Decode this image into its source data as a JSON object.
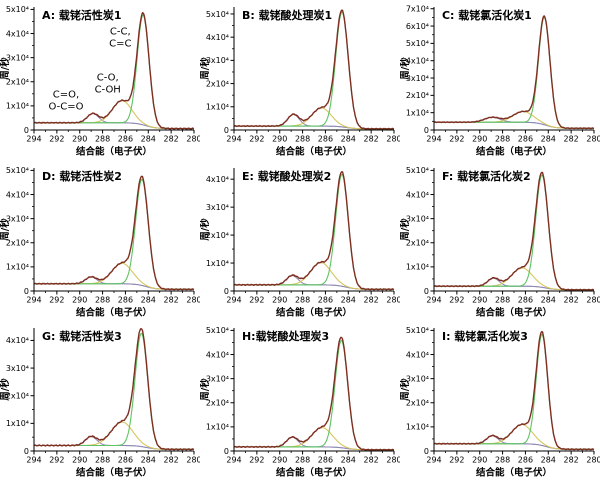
{
  "figure": {
    "x_label": "结合能（电子伏）",
    "y_label": "周/秒",
    "x_ticks": [
      294,
      292,
      290,
      288,
      286,
      284,
      282,
      280
    ],
    "x_range": [
      294,
      280
    ],
    "y_tick_suffix": "x10⁴",
    "y_unit_counts": "counts per second × 10^4",
    "colors": {
      "envelope": "#7e2f22",
      "main_peak": "#5ec463",
      "secondary_peak": "#d6c65e",
      "minor_peak": "#8d86b0",
      "baseline": "#8a97c9",
      "axis": "#000000",
      "background": "#ffffff"
    }
  },
  "chart_data": [
    {
      "type": "line",
      "panel": "A",
      "title": "A: 载铑活性炭1",
      "xlabel": "结合能（电子伏）",
      "ylabel": "周/秒",
      "x_range": [
        294,
        280
      ],
      "x_ticks": [
        294,
        292,
        290,
        288,
        286,
        284,
        282,
        280
      ],
      "y_tick_max": 5,
      "ylim": [
        0,
        5.1
      ],
      "baseline": {
        "left": 0.3,
        "right": 0.06
      },
      "peaks": {
        "main": {
          "center": 284.45,
          "sigma": 0.52,
          "height": 4.55,
          "assignment": "C-C, C=C"
        },
        "secondary": {
          "center": 286.3,
          "sigma": 0.85,
          "height": 0.92,
          "assignment": "C-O, C-OH"
        },
        "minor": {
          "center": 288.85,
          "sigma": 0.5,
          "height": 0.38,
          "assignment": "C=O, O-C=O"
        }
      },
      "annotations": [
        {
          "lines": [
            "C-C,",
            "C=C"
          ],
          "x": 286.45,
          "y": 3.95
        },
        {
          "lines": [
            "C-O,",
            "C-OH"
          ],
          "x": 287.55,
          "y": 2.05
        },
        {
          "lines": [
            "C=O,",
            "O-C=O"
          ],
          "x": 291.2,
          "y": 1.35
        }
      ]
    },
    {
      "type": "line",
      "panel": "B",
      "title": "B: 载铑酸处理炭1",
      "xlabel": "结合能（电子伏）",
      "ylabel": "周/秒",
      "x_range": [
        294,
        280
      ],
      "x_ticks": [
        294,
        292,
        290,
        288,
        286,
        284,
        282,
        280
      ],
      "y_tick_max": 5,
      "ylim": [
        0,
        5.3
      ],
      "baseline": {
        "left": 0.17,
        "right": 0.05
      },
      "peaks": {
        "main": {
          "center": 284.55,
          "sigma": 0.55,
          "height": 4.95
        },
        "secondary": {
          "center": 286.35,
          "sigma": 0.85,
          "height": 0.78
        },
        "minor": {
          "center": 288.8,
          "sigma": 0.5,
          "height": 0.5
        }
      },
      "annotations": []
    },
    {
      "type": "line",
      "panel": "C",
      "title": "C: 载铑氯活化炭1",
      "xlabel": "结合能（电子伏）",
      "ylabel": "周/秒",
      "x_range": [
        294,
        280
      ],
      "x_ticks": [
        294,
        292,
        290,
        288,
        286,
        284,
        282,
        280
      ],
      "y_tick_max": 7,
      "ylim": [
        0,
        7.1
      ],
      "baseline": {
        "left": 0.45,
        "right": 0.1
      },
      "peaks": {
        "main": {
          "center": 284.35,
          "sigma": 0.5,
          "height": 6.2
        },
        "secondary": {
          "center": 286.2,
          "sigma": 0.9,
          "height": 0.62
        },
        "minor": {
          "center": 288.9,
          "sigma": 0.7,
          "height": 0.28
        }
      },
      "annotations": []
    },
    {
      "type": "line",
      "panel": "D",
      "title": "D: 载铑活性炭2",
      "xlabel": "结合能（电子伏）",
      "ylabel": "周/秒",
      "x_range": [
        294,
        280
      ],
      "x_ticks": [
        294,
        292,
        290,
        288,
        286,
        284,
        282,
        280
      ],
      "y_tick_max": 5,
      "ylim": [
        0,
        5.1
      ],
      "baseline": {
        "left": 0.3,
        "right": 0.07
      },
      "peaks": {
        "main": {
          "center": 284.55,
          "sigma": 0.55,
          "height": 4.4
        },
        "secondary": {
          "center": 286.3,
          "sigma": 0.9,
          "height": 0.85
        },
        "minor": {
          "center": 289.0,
          "sigma": 0.5,
          "height": 0.28
        }
      },
      "annotations": []
    },
    {
      "type": "line",
      "panel": "E",
      "title": "E: 载铑酸处理炭2",
      "xlabel": "结合能（电子伏）",
      "ylabel": "周/秒",
      "x_range": [
        294,
        280
      ],
      "x_ticks": [
        294,
        292,
        290,
        288,
        286,
        284,
        282,
        280
      ],
      "y_tick_max": 4,
      "ylim": [
        0,
        4.4
      ],
      "baseline": {
        "left": 0.22,
        "right": 0.06
      },
      "peaks": {
        "main": {
          "center": 284.55,
          "sigma": 0.55,
          "height": 4.0
        },
        "secondary": {
          "center": 286.4,
          "sigma": 0.9,
          "height": 0.8
        },
        "minor": {
          "center": 288.9,
          "sigma": 0.5,
          "height": 0.33
        }
      },
      "annotations": []
    },
    {
      "type": "line",
      "panel": "F",
      "title": "F: 载铑氯活化炭2",
      "xlabel": "结合能（电子伏）",
      "ylabel": "周/秒",
      "x_range": [
        294,
        280
      ],
      "x_ticks": [
        294,
        292,
        290,
        288,
        286,
        284,
        282,
        280
      ],
      "y_tick_max": 5,
      "ylim": [
        0,
        5.1
      ],
      "baseline": {
        "left": 0.2,
        "right": 0.05
      },
      "peaks": {
        "main": {
          "center": 284.55,
          "sigma": 0.55,
          "height": 4.65
        },
        "secondary": {
          "center": 286.3,
          "sigma": 0.9,
          "height": 0.76
        },
        "minor": {
          "center": 288.8,
          "sigma": 0.5,
          "height": 0.33
        }
      },
      "annotations": []
    },
    {
      "type": "line",
      "panel": "G",
      "title": "G: 载铑活性炭3",
      "xlabel": "结合能（电子伏）",
      "ylabel": "周/秒",
      "x_range": [
        294,
        280
      ],
      "x_ticks": [
        294,
        292,
        290,
        288,
        286,
        284,
        282,
        280
      ],
      "y_tick_max": 4,
      "ylim": [
        0,
        4.45
      ],
      "baseline": {
        "left": 0.2,
        "right": 0.06
      },
      "peaks": {
        "main": {
          "center": 284.6,
          "sigma": 0.55,
          "height": 4.1
        },
        "secondary": {
          "center": 286.3,
          "sigma": 0.95,
          "height": 0.85
        },
        "minor": {
          "center": 289.0,
          "sigma": 0.5,
          "height": 0.32
        }
      },
      "annotations": []
    },
    {
      "type": "line",
      "panel": "H",
      "title": "H:载铑酸处理炭3",
      "xlabel": "结合能（电子伏）",
      "ylabel": "周/秒",
      "x_range": [
        294,
        280
      ],
      "x_ticks": [
        294,
        292,
        290,
        288,
        286,
        284,
        282,
        280
      ],
      "y_tick_max": 5,
      "ylim": [
        0,
        5.1
      ],
      "baseline": {
        "left": 0.17,
        "right": 0.05
      },
      "peaks": {
        "main": {
          "center": 284.6,
          "sigma": 0.55,
          "height": 4.45
        },
        "secondary": {
          "center": 286.3,
          "sigma": 0.9,
          "height": 0.8
        },
        "minor": {
          "center": 288.9,
          "sigma": 0.5,
          "height": 0.4
        }
      },
      "annotations": []
    },
    {
      "type": "line",
      "panel": "I",
      "title": "I: 载铑氯活化炭3",
      "xlabel": "结合能（电子伏）",
      "ylabel": "周/秒",
      "x_range": [
        294,
        280
      ],
      "x_ticks": [
        294,
        292,
        290,
        288,
        286,
        284,
        282,
        280
      ],
      "y_tick_max": 5,
      "ylim": [
        0,
        5.1
      ],
      "baseline": {
        "left": 0.3,
        "right": 0.07
      },
      "peaks": {
        "main": {
          "center": 284.55,
          "sigma": 0.5,
          "height": 4.6
        },
        "secondary": {
          "center": 286.3,
          "sigma": 0.9,
          "height": 0.8
        },
        "minor": {
          "center": 288.9,
          "sigma": 0.5,
          "height": 0.33
        }
      },
      "annotations": []
    }
  ]
}
